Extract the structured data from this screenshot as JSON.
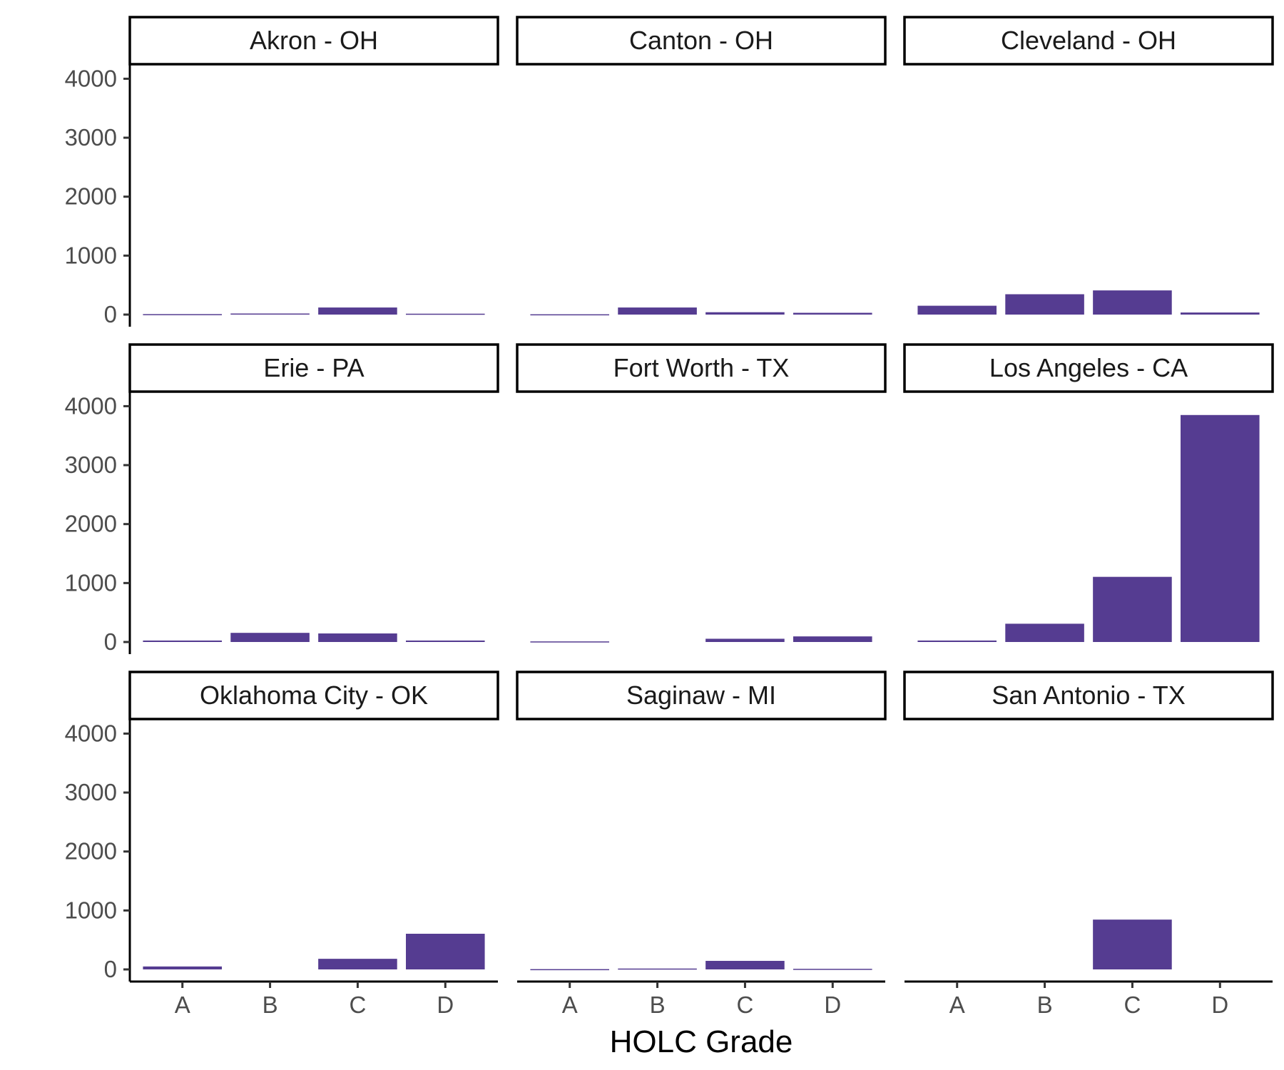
{
  "chart_data": {
    "type": "bar",
    "facet_layout": "3x3 grid",
    "xlabel": "HOLC Grade",
    "ylabel": "",
    "categories": [
      "A",
      "B",
      "C",
      "D"
    ],
    "ylim": [
      0,
      4150
    ],
    "yticks": [
      0,
      1000,
      2000,
      3000,
      4000
    ],
    "bar_color": "#553c91",
    "facets": [
      {
        "title": "Akron - OH",
        "values": [
          8,
          18,
          120,
          15
        ]
      },
      {
        "title": "Canton - OH",
        "values": [
          5,
          120,
          40,
          30
        ]
      },
      {
        "title": "Cleveland - OH",
        "values": [
          150,
          345,
          410,
          35
        ]
      },
      {
        "title": "Erie - PA",
        "values": [
          25,
          155,
          145,
          25
        ]
      },
      {
        "title": "Fort Worth - TX",
        "values": [
          10,
          0,
          55,
          95
        ]
      },
      {
        "title": "Los Angeles - CA",
        "values": [
          25,
          310,
          1105,
          3850
        ]
      },
      {
        "title": "Oklahoma City - OK",
        "values": [
          50,
          0,
          180,
          605
        ]
      },
      {
        "title": "Saginaw - MI",
        "values": [
          5,
          15,
          145,
          10
        ]
      },
      {
        "title": "San Antonio - TX",
        "values": [
          0,
          0,
          845,
          0
        ]
      }
    ]
  }
}
